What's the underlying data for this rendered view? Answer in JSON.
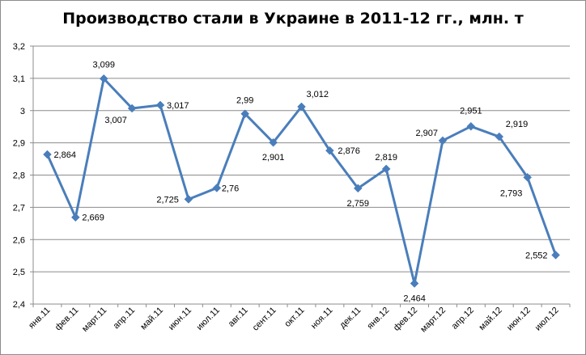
{
  "chart_data": {
    "type": "line",
    "title": "Производство стали в Украине в 2011-12 гг., млн. т",
    "xlabel": "",
    "ylabel": "",
    "ylim": [
      2.4,
      3.2
    ],
    "yticks": [
      "2,4",
      "2,5",
      "2,6",
      "2,7",
      "2,8",
      "2,9",
      "3",
      "3,1",
      "3,2"
    ],
    "grid": true,
    "legend": "none",
    "categories": [
      "янв.11",
      "фев.11",
      "март.11",
      "апр.11",
      "май.11",
      "июн.11",
      "июл.11",
      "авг.11",
      "сент.11",
      "окт.11",
      "ноя.11",
      "дек.11",
      "янв.12",
      "фев.12",
      "март.12",
      "апр.12",
      "май.12",
      "июн.12",
      "июл.12"
    ],
    "series": [
      {
        "values": [
          2.864,
          2.669,
          3.099,
          3.007,
          3.017,
          2.725,
          2.76,
          2.99,
          2.901,
          3.012,
          2.876,
          2.759,
          2.819,
          2.464,
          2.907,
          2.951,
          2.919,
          2.793,
          2.552
        ],
        "labels": [
          "2,864",
          "2,669",
          "3,099",
          "3,007",
          "3,017",
          "2,725",
          "2,76",
          "2,99",
          "2,901",
          "3,012",
          "2,876",
          "2,759",
          "2,819",
          "2,464",
          "2,907",
          "2,951",
          "2,919",
          "2,793",
          "2,552"
        ],
        "color": "#4a7ebb"
      }
    ]
  }
}
